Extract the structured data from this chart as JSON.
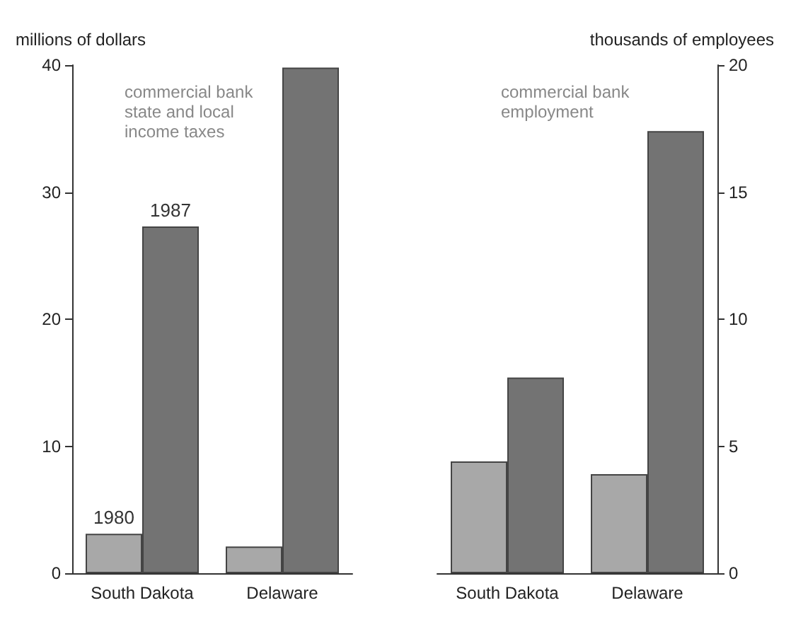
{
  "chart_data": [
    {
      "type": "bar",
      "ylabel": "millions of dollars",
      "categories": [
        "South Dakota",
        "Delaware"
      ],
      "series": [
        {
          "name": "1980",
          "color": "#a8a8a8",
          "values": [
            3.1,
            2.1
          ]
        },
        {
          "name": "1987",
          "color": "#737373",
          "values": [
            27.3,
            39.8
          ]
        }
      ],
      "ylim": [
        0,
        40
      ],
      "yticks": [
        0,
        10,
        20,
        30,
        40
      ],
      "grid": false,
      "legend": false,
      "annotations": [
        "commercial bank state and local income taxes"
      ]
    },
    {
      "type": "bar",
      "y2label": "thousands of employees",
      "categories": [
        "South Dakota",
        "Delaware"
      ],
      "series": [
        {
          "color": "#a8a8a8",
          "values": [
            4.4,
            3.9
          ],
          "axis": "y2"
        },
        {
          "color": "#737373",
          "values": [
            7.7,
            17.4
          ],
          "axis": "y2"
        }
      ],
      "y2lim": [
        0,
        20
      ],
      "y2ticks": [
        0,
        5,
        10,
        15,
        20
      ],
      "grid": false,
      "legend": false,
      "annotations": [
        "commercial bank employment"
      ]
    }
  ]
}
